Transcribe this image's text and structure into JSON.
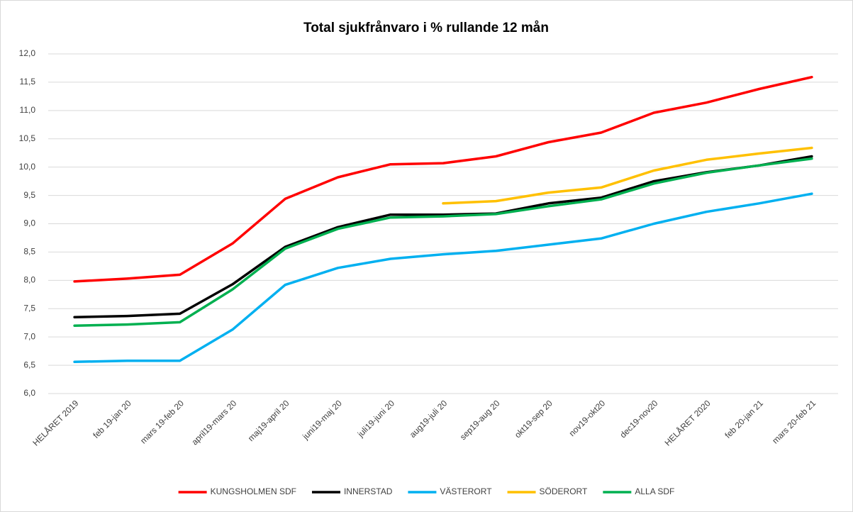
{
  "chart_data": {
    "type": "line",
    "title": "Total sjukfrånvaro i % rullande 12 mån",
    "categories": [
      "HELÅRET 2019",
      "feb 19-jan 20",
      "mars 19-feb 20",
      "april19-mars 20",
      "maj19-april 20",
      "juni19-maj 20",
      "juli19-juni 20",
      "aug19-juli 20",
      "sep19-aug 20",
      "okt19-sep 20",
      "nov19-okt20",
      "dec19-nov20",
      "HELÅRET 2020",
      "feb 20-jan 21",
      "mars 20-feb 21"
    ],
    "series": [
      {
        "name": "KUNGSHOLMEN SDF",
        "color": "#ff0000",
        "values": [
          7.98,
          8.03,
          8.1,
          8.65,
          9.44,
          9.82,
          10.05,
          10.07,
          10.19,
          10.44,
          10.61,
          10.96,
          11.14,
          11.38,
          11.59
        ]
      },
      {
        "name": "INNERSTAD",
        "color": "#000000",
        "values": [
          7.35,
          7.37,
          7.41,
          7.93,
          8.59,
          8.94,
          9.16,
          9.16,
          9.18,
          9.36,
          9.46,
          9.75,
          9.91,
          10.03,
          10.19
        ]
      },
      {
        "name": "VÄSTERORT",
        "color": "#00b0f0",
        "values": [
          6.56,
          6.58,
          6.58,
          7.13,
          7.92,
          8.22,
          8.38,
          8.46,
          8.52,
          8.63,
          8.74,
          9.0,
          9.21,
          9.36,
          9.53
        ]
      },
      {
        "name": "SÖDERORT",
        "color": "#ffc000",
        "values": [
          null,
          null,
          null,
          null,
          null,
          null,
          null,
          9.36,
          9.4,
          9.55,
          9.64,
          9.94,
          10.13,
          10.24,
          10.34
        ]
      },
      {
        "name": "ALLA SDF",
        "color": "#00b050",
        "values": [
          7.2,
          7.22,
          7.26,
          7.84,
          8.56,
          8.91,
          9.11,
          9.13,
          9.17,
          9.31,
          9.43,
          9.71,
          9.9,
          10.03,
          10.15
        ]
      }
    ],
    "ylim": [
      6,
      12
    ],
    "yticks": [
      {
        "value": 6,
        "label": "6,0"
      },
      {
        "value": 6.5,
        "label": "6,5"
      },
      {
        "value": 7,
        "label": "7,0"
      },
      {
        "value": 7.5,
        "label": "7,5"
      },
      {
        "value": 8,
        "label": "8,0"
      },
      {
        "value": 8.5,
        "label": "8,5"
      },
      {
        "value": 9,
        "label": "9,0"
      },
      {
        "value": 9.5,
        "label": "9,5"
      },
      {
        "value": 10,
        "label": "10,0"
      },
      {
        "value": 10.5,
        "label": "10,5"
      },
      {
        "value": 11,
        "label": "11,0"
      },
      {
        "value": 11.5,
        "label": "11,5"
      },
      {
        "value": 12,
        "label": "12,0"
      }
    ],
    "grid": true,
    "legend": "bottom"
  }
}
